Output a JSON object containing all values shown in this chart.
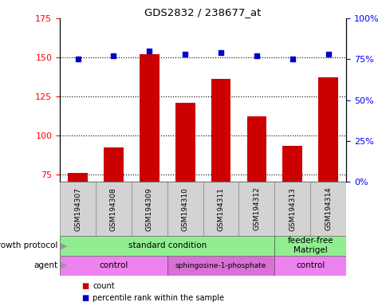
{
  "title": "GDS2832 / 238677_at",
  "samples": [
    "GSM194307",
    "GSM194308",
    "GSM194309",
    "GSM194310",
    "GSM194311",
    "GSM194312",
    "GSM194313",
    "GSM194314"
  ],
  "counts": [
    76,
    92,
    152,
    121,
    136,
    112,
    93,
    137
  ],
  "percentile_ranks": [
    75,
    77,
    80,
    78,
    79,
    77,
    75,
    78
  ],
  "ylim_left": [
    70,
    175
  ],
  "ylim_right": [
    0,
    100
  ],
  "yticks_left": [
    75,
    100,
    125,
    150,
    175
  ],
  "yticks_right": [
    0,
    25,
    50,
    75,
    100
  ],
  "ytick_labels_right": [
    "0%",
    "25%",
    "50%",
    "75%",
    "100%"
  ],
  "bar_color": "#cc0000",
  "dot_color": "#0000cc",
  "growth_protocol_groups": [
    {
      "label": "standard condition",
      "start": 0,
      "end": 6,
      "color": "#90ee90"
    },
    {
      "label": "feeder-free\nMatrigel",
      "start": 6,
      "end": 8,
      "color": "#90ee90"
    }
  ],
  "agent_groups": [
    {
      "label": "control",
      "start": 0,
      "end": 3,
      "color": "#ee82ee"
    },
    {
      "label": "sphingosine-1-phosphate",
      "start": 3,
      "end": 6,
      "color": "#da70d6"
    },
    {
      "label": "control",
      "start": 6,
      "end": 8,
      "color": "#ee82ee"
    }
  ]
}
